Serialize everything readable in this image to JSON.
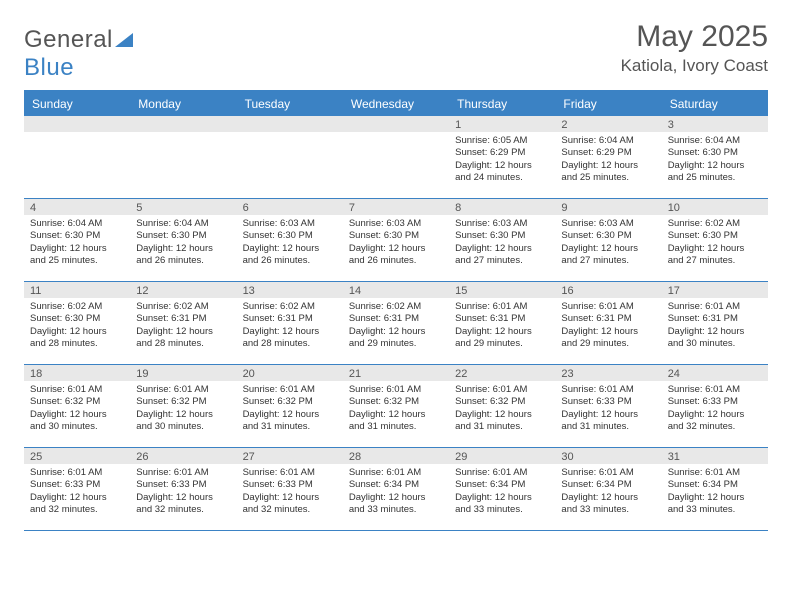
{
  "logo": {
    "part1": "General",
    "part2": "Blue"
  },
  "title": "May 2025",
  "location": "Katiola, Ivory Coast",
  "colors": {
    "header_bg": "#3b82c4",
    "header_text": "#ffffff",
    "daynum_bg": "#e8e8e8",
    "text": "#333333",
    "rule": "#3b82c4"
  },
  "day_names": [
    "Sunday",
    "Monday",
    "Tuesday",
    "Wednesday",
    "Thursday",
    "Friday",
    "Saturday"
  ],
  "weeks": [
    [
      {
        "n": "",
        "sr": "",
        "ss": "",
        "dl": ""
      },
      {
        "n": "",
        "sr": "",
        "ss": "",
        "dl": ""
      },
      {
        "n": "",
        "sr": "",
        "ss": "",
        "dl": ""
      },
      {
        "n": "",
        "sr": "",
        "ss": "",
        "dl": ""
      },
      {
        "n": "1",
        "sr": "Sunrise: 6:05 AM",
        "ss": "Sunset: 6:29 PM",
        "dl": "Daylight: 12 hours and 24 minutes."
      },
      {
        "n": "2",
        "sr": "Sunrise: 6:04 AM",
        "ss": "Sunset: 6:29 PM",
        "dl": "Daylight: 12 hours and 25 minutes."
      },
      {
        "n": "3",
        "sr": "Sunrise: 6:04 AM",
        "ss": "Sunset: 6:30 PM",
        "dl": "Daylight: 12 hours and 25 minutes."
      }
    ],
    [
      {
        "n": "4",
        "sr": "Sunrise: 6:04 AM",
        "ss": "Sunset: 6:30 PM",
        "dl": "Daylight: 12 hours and 25 minutes."
      },
      {
        "n": "5",
        "sr": "Sunrise: 6:04 AM",
        "ss": "Sunset: 6:30 PM",
        "dl": "Daylight: 12 hours and 26 minutes."
      },
      {
        "n": "6",
        "sr": "Sunrise: 6:03 AM",
        "ss": "Sunset: 6:30 PM",
        "dl": "Daylight: 12 hours and 26 minutes."
      },
      {
        "n": "7",
        "sr": "Sunrise: 6:03 AM",
        "ss": "Sunset: 6:30 PM",
        "dl": "Daylight: 12 hours and 26 minutes."
      },
      {
        "n": "8",
        "sr": "Sunrise: 6:03 AM",
        "ss": "Sunset: 6:30 PM",
        "dl": "Daylight: 12 hours and 27 minutes."
      },
      {
        "n": "9",
        "sr": "Sunrise: 6:03 AM",
        "ss": "Sunset: 6:30 PM",
        "dl": "Daylight: 12 hours and 27 minutes."
      },
      {
        "n": "10",
        "sr": "Sunrise: 6:02 AM",
        "ss": "Sunset: 6:30 PM",
        "dl": "Daylight: 12 hours and 27 minutes."
      }
    ],
    [
      {
        "n": "11",
        "sr": "Sunrise: 6:02 AM",
        "ss": "Sunset: 6:30 PM",
        "dl": "Daylight: 12 hours and 28 minutes."
      },
      {
        "n": "12",
        "sr": "Sunrise: 6:02 AM",
        "ss": "Sunset: 6:31 PM",
        "dl": "Daylight: 12 hours and 28 minutes."
      },
      {
        "n": "13",
        "sr": "Sunrise: 6:02 AM",
        "ss": "Sunset: 6:31 PM",
        "dl": "Daylight: 12 hours and 28 minutes."
      },
      {
        "n": "14",
        "sr": "Sunrise: 6:02 AM",
        "ss": "Sunset: 6:31 PM",
        "dl": "Daylight: 12 hours and 29 minutes."
      },
      {
        "n": "15",
        "sr": "Sunrise: 6:01 AM",
        "ss": "Sunset: 6:31 PM",
        "dl": "Daylight: 12 hours and 29 minutes."
      },
      {
        "n": "16",
        "sr": "Sunrise: 6:01 AM",
        "ss": "Sunset: 6:31 PM",
        "dl": "Daylight: 12 hours and 29 minutes."
      },
      {
        "n": "17",
        "sr": "Sunrise: 6:01 AM",
        "ss": "Sunset: 6:31 PM",
        "dl": "Daylight: 12 hours and 30 minutes."
      }
    ],
    [
      {
        "n": "18",
        "sr": "Sunrise: 6:01 AM",
        "ss": "Sunset: 6:32 PM",
        "dl": "Daylight: 12 hours and 30 minutes."
      },
      {
        "n": "19",
        "sr": "Sunrise: 6:01 AM",
        "ss": "Sunset: 6:32 PM",
        "dl": "Daylight: 12 hours and 30 minutes."
      },
      {
        "n": "20",
        "sr": "Sunrise: 6:01 AM",
        "ss": "Sunset: 6:32 PM",
        "dl": "Daylight: 12 hours and 31 minutes."
      },
      {
        "n": "21",
        "sr": "Sunrise: 6:01 AM",
        "ss": "Sunset: 6:32 PM",
        "dl": "Daylight: 12 hours and 31 minutes."
      },
      {
        "n": "22",
        "sr": "Sunrise: 6:01 AM",
        "ss": "Sunset: 6:32 PM",
        "dl": "Daylight: 12 hours and 31 minutes."
      },
      {
        "n": "23",
        "sr": "Sunrise: 6:01 AM",
        "ss": "Sunset: 6:33 PM",
        "dl": "Daylight: 12 hours and 31 minutes."
      },
      {
        "n": "24",
        "sr": "Sunrise: 6:01 AM",
        "ss": "Sunset: 6:33 PM",
        "dl": "Daylight: 12 hours and 32 minutes."
      }
    ],
    [
      {
        "n": "25",
        "sr": "Sunrise: 6:01 AM",
        "ss": "Sunset: 6:33 PM",
        "dl": "Daylight: 12 hours and 32 minutes."
      },
      {
        "n": "26",
        "sr": "Sunrise: 6:01 AM",
        "ss": "Sunset: 6:33 PM",
        "dl": "Daylight: 12 hours and 32 minutes."
      },
      {
        "n": "27",
        "sr": "Sunrise: 6:01 AM",
        "ss": "Sunset: 6:33 PM",
        "dl": "Daylight: 12 hours and 32 minutes."
      },
      {
        "n": "28",
        "sr": "Sunrise: 6:01 AM",
        "ss": "Sunset: 6:34 PM",
        "dl": "Daylight: 12 hours and 33 minutes."
      },
      {
        "n": "29",
        "sr": "Sunrise: 6:01 AM",
        "ss": "Sunset: 6:34 PM",
        "dl": "Daylight: 12 hours and 33 minutes."
      },
      {
        "n": "30",
        "sr": "Sunrise: 6:01 AM",
        "ss": "Sunset: 6:34 PM",
        "dl": "Daylight: 12 hours and 33 minutes."
      },
      {
        "n": "31",
        "sr": "Sunrise: 6:01 AM",
        "ss": "Sunset: 6:34 PM",
        "dl": "Daylight: 12 hours and 33 minutes."
      }
    ]
  ]
}
